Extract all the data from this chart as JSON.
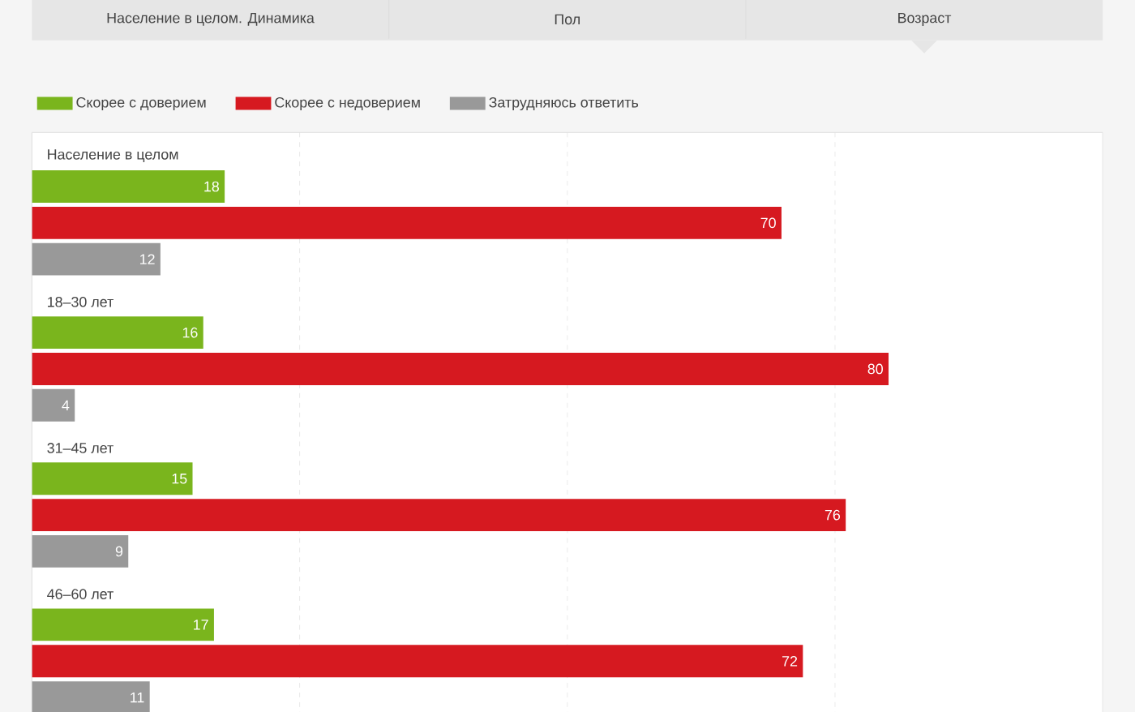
{
  "chart_data": {
    "type": "bar",
    "orientation": "horizontal",
    "categories": [
      "Население в целом",
      "18–30 лет",
      "31–45 лет",
      "46–60 лет"
    ],
    "series": [
      {
        "name": "Скорее с доверием",
        "color": "#7ab51d",
        "values": [
          18,
          16,
          15,
          17
        ]
      },
      {
        "name": "Скорее с недоверием",
        "color": "#d61920",
        "values": [
          70,
          80,
          76,
          72
        ]
      },
      {
        "name": "Затрудняюсь ответить",
        "color": "#999999",
        "values": [
          12,
          4,
          9,
          11
        ]
      }
    ],
    "xlim": [
      0,
      100
    ],
    "xticks": [
      25,
      50,
      75
    ],
    "tick_labels": false,
    "grid": "x",
    "legend": "top left",
    "data_labels": true,
    "annotations": [
      "Население в целом. Динамика",
      "Пол",
      "Возраст"
    ]
  }
}
